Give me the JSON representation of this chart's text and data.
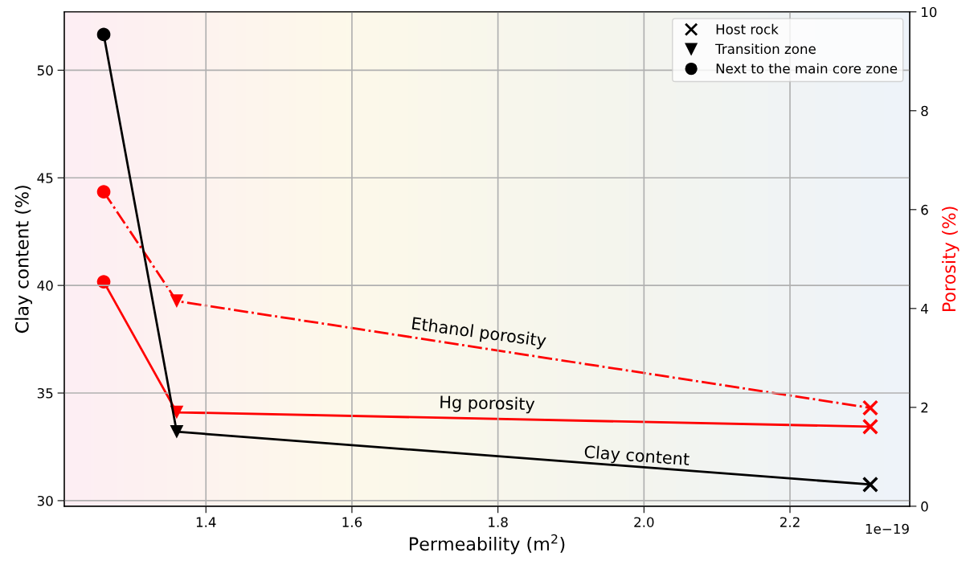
{
  "chart_data": {
    "type": "line",
    "xlabel": "Permeability (m$^{2}$)",
    "ylabel": "Clay content (%)",
    "y2label": "Porosity (%)",
    "series": [
      {
        "color": "#000000",
        "x": [
          1.26,
          1.36,
          2.31
        ],
        "values": [
          51.66,
          33.2,
          30.75
        ],
        "line_style": "solid",
        "marker": "none"
      },
      {
        "color": "#ff0000",
        "x": [
          1.26,
          1.36,
          2.31
        ],
        "values": [
          6.36,
          4.15,
          1.99
        ],
        "line_style": "dashdot",
        "marker": "none",
        "axis": "y2"
      },
      {
        "color": "#ff0000",
        "x": [
          1.26,
          1.36,
          2.31
        ],
        "values": [
          4.54,
          1.9,
          1.61
        ],
        "line_style": "solid",
        "marker": "none",
        "axis": "y2"
      },
      {
        "type": "scatter",
        "name": "Host rock",
        "color": "#000000",
        "x": [
          2.31
        ],
        "values": [
          30.75
        ],
        "marker": "cross"
      },
      {
        "type": "scatter",
        "color": "#ff0000",
        "x": [
          2.31,
          2.31
        ],
        "values": [
          1.99,
          1.61
        ],
        "marker": "cross",
        "axis": "y2"
      },
      {
        "type": "scatter",
        "name": "Transition zone",
        "color": "#000000",
        "x": [
          1.36
        ],
        "values": [
          33.2
        ],
        "marker": "triangle"
      },
      {
        "type": "scatter",
        "color": "#ff0000",
        "x": [
          1.36,
          1.36
        ],
        "values": [
          4.15,
          1.9
        ],
        "marker": "triangle",
        "axis": "y2"
      },
      {
        "type": "scatter",
        "name": "Next to the main core zone",
        "color": "#000000",
        "x": [
          1.26
        ],
        "values": [
          51.66
        ],
        "marker": "circle"
      },
      {
        "type": "scatter",
        "color": "#ff0000",
        "x": [
          1.26,
          1.26
        ],
        "values": [
          6.36,
          4.54
        ],
        "marker": "circle",
        "axis": "y2"
      }
    ],
    "xlim": [
      1.206,
      2.364
    ],
    "xticks": [
      1.4,
      1.6,
      1.8,
      {
        "value": 2,
        "label": "2.0"
      },
      2.2
    ],
    "ylim": [
      29.74,
      52.71
    ],
    "yticks": [
      30,
      35,
      40,
      45,
      50
    ],
    "y2lim": [
      0,
      10
    ],
    "y2ticks": [
      0,
      2,
      4,
      6,
      8,
      10
    ],
    "annotations": [
      "Ethanol porosity",
      "Hg porosity",
      "Clay content",
      "1e−19"
    ],
    "grid": true,
    "legend": "top right"
  }
}
